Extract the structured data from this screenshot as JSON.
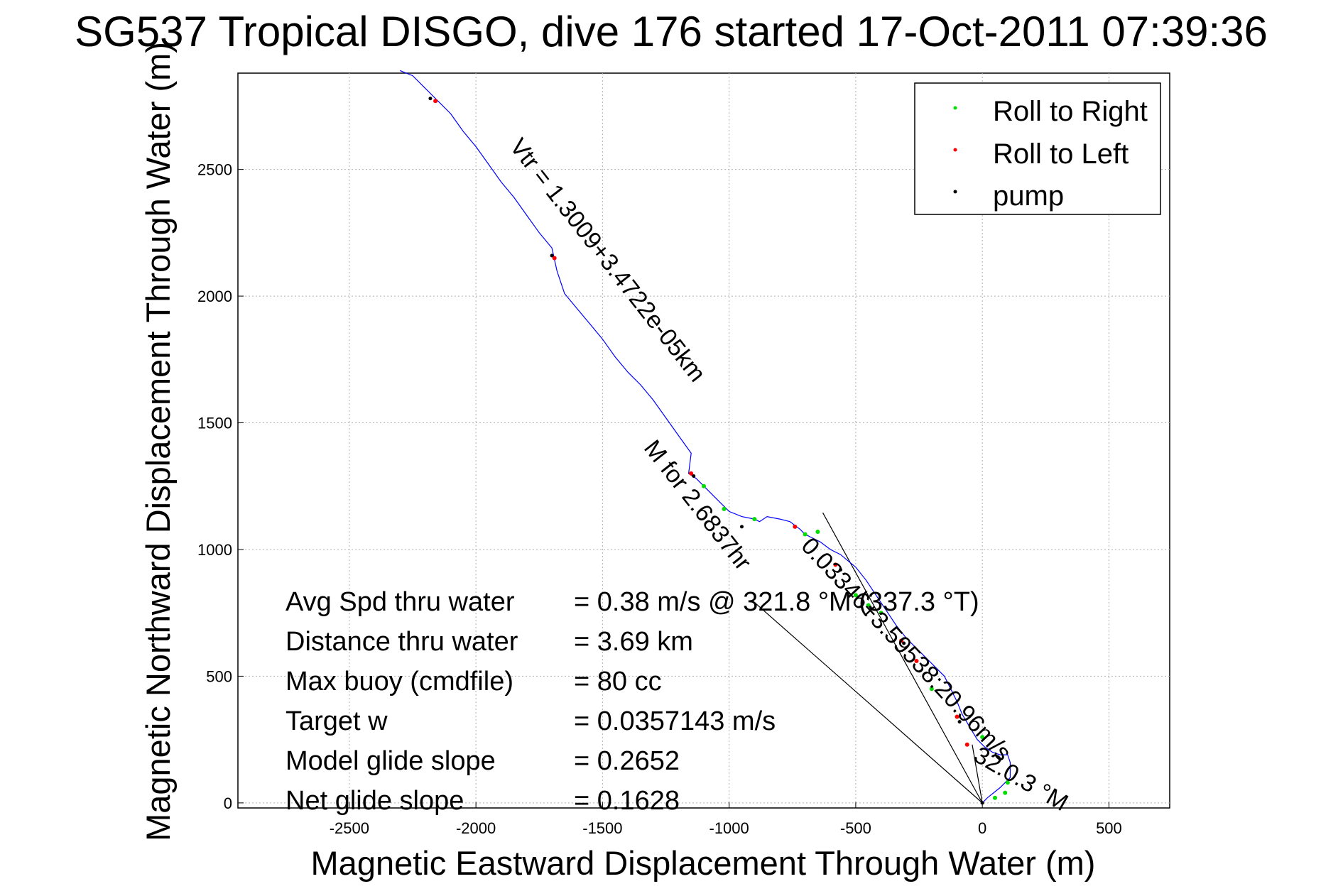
{
  "chart_data": {
    "type": "line",
    "title": "SG537 Tropical DISGO, dive 176 started 17-Oct-2011 07:39:36",
    "xlabel": "Magnetic Eastward Displacement Through Water (m)",
    "ylabel": "Magnetic Northward Displacement Through Water (m)",
    "xlim": [
      -2940,
      740
    ],
    "ylim": [
      -20,
      2880
    ],
    "xticks": [
      -2500,
      -2000,
      -1500,
      -1000,
      -500,
      0,
      500
    ],
    "yticks": [
      0,
      500,
      1000,
      1500,
      2000,
      2500
    ],
    "grid": true,
    "legend": {
      "placement": "top-right",
      "entries": [
        {
          "label": "Roll to Right",
          "color": "#00dd00"
        },
        {
          "label": "Roll to Left",
          "color": "#ff0000"
        },
        {
          "label": "pump",
          "color": "#000000"
        }
      ]
    },
    "series": [
      {
        "role": "track",
        "color": "#0000ff",
        "x": [
          0,
          20,
          70,
          110,
          110,
          100,
          70,
          40,
          10,
          -20,
          -50,
          -80,
          -100,
          -120,
          -150,
          -200,
          -250,
          -300,
          -340,
          -380,
          -420,
          -460,
          -500,
          -560,
          -600,
          -640,
          -680,
          -700,
          -720,
          -760,
          -800,
          -850,
          -880,
          -900,
          -950,
          -1000,
          -1050,
          -1100,
          -1130,
          -1160,
          -1150,
          -1200,
          -1250,
          -1300,
          -1350,
          -1400,
          -1450,
          -1500,
          -1550,
          -1600,
          -1650,
          -1680,
          -1700,
          -1750,
          -1800,
          -1850,
          -1900,
          -1950,
          -2000,
          -2050,
          -2100,
          -2150,
          -2200,
          -2250,
          -2300
        ],
        "y": [
          0,
          20,
          60,
          100,
          160,
          190,
          190,
          200,
          220,
          250,
          300,
          350,
          400,
          440,
          500,
          550,
          600,
          650,
          700,
          760,
          820,
          880,
          930,
          980,
          1000,
          1030,
          1050,
          1060,
          1080,
          1110,
          1120,
          1130,
          1110,
          1120,
          1130,
          1150,
          1200,
          1250,
          1280,
          1300,
          1380,
          1450,
          1520,
          1590,
          1650,
          1700,
          1760,
          1830,
          1890,
          1950,
          2010,
          2100,
          2190,
          2250,
          2320,
          2390,
          2450,
          2520,
          2590,
          2650,
          2720,
          2770,
          2820,
          2870,
          2890
        ]
      },
      {
        "role": "rolls-to-left",
        "color": "#ff0000",
        "x": [
          -2160,
          -1690,
          -1150,
          -740,
          -580,
          -320,
          -260,
          -100,
          -60
        ],
        "y": [
          2770,
          2150,
          1300,
          1090,
          940,
          640,
          560,
          340,
          230
        ]
      },
      {
        "role": "rolls-to-right",
        "color": "#00dd00",
        "x": [
          -1100,
          -1020,
          -900,
          -700,
          -650,
          -500,
          -450,
          -400,
          -200,
          0,
          50,
          90,
          100
        ],
        "y": [
          1250,
          1160,
          1120,
          1060,
          1070,
          820,
          780,
          750,
          450,
          260,
          20,
          40,
          80
        ]
      },
      {
        "role": "pump",
        "color": "#000000",
        "x": [
          -2180,
          -1700,
          -1140,
          -950,
          -560,
          -310,
          -90,
          0
        ],
        "y": [
          2780,
          2160,
          1290,
          1090,
          920,
          630,
          320,
          0
        ]
      }
    ],
    "reference_lines": [
      {
        "x": [
          0,
          -630
        ],
        "y": [
          0,
          1145
        ]
      },
      {
        "x": [
          0,
          -910
        ],
        "y": [
          0,
          800
        ]
      },
      {
        "x": [
          0,
          -40
        ],
        "y": [
          0,
          230
        ]
      }
    ],
    "rotated_labels": [
      {
        "text": "Vtr = 1.3009+3.4722e-05km",
        "x": -1870,
        "y": 2590,
        "angle": 52
      },
      {
        "text": "M for 2.6837hr",
        "x": -1340,
        "y": 1400,
        "angle": 52
      },
      {
        "text": "0.03346+3.59538:20.96m/s",
        "x": -720,
        "y": 1010,
        "angle": 47
      },
      {
        "text": "32.0.3 °M",
        "x": -40,
        "y": 170,
        "angle": 30
      }
    ],
    "annotations": [
      {
        "label": "Avg Spd thru water",
        "value": "=  0.38 m/s @ 321.8 °M (337.3 °T)"
      },
      {
        "label": "Distance thru water",
        "value": "=  3.69 km"
      },
      {
        "label": "Max buoy (cmdfile)",
        "value": "= 80 cc"
      },
      {
        "label": "Target w",
        "value": "= 0.0357143 m/s"
      },
      {
        "label": "Model glide slope",
        "value": "= 0.2652"
      },
      {
        "label": "Net glide slope",
        "value": "= 0.1628"
      }
    ]
  }
}
